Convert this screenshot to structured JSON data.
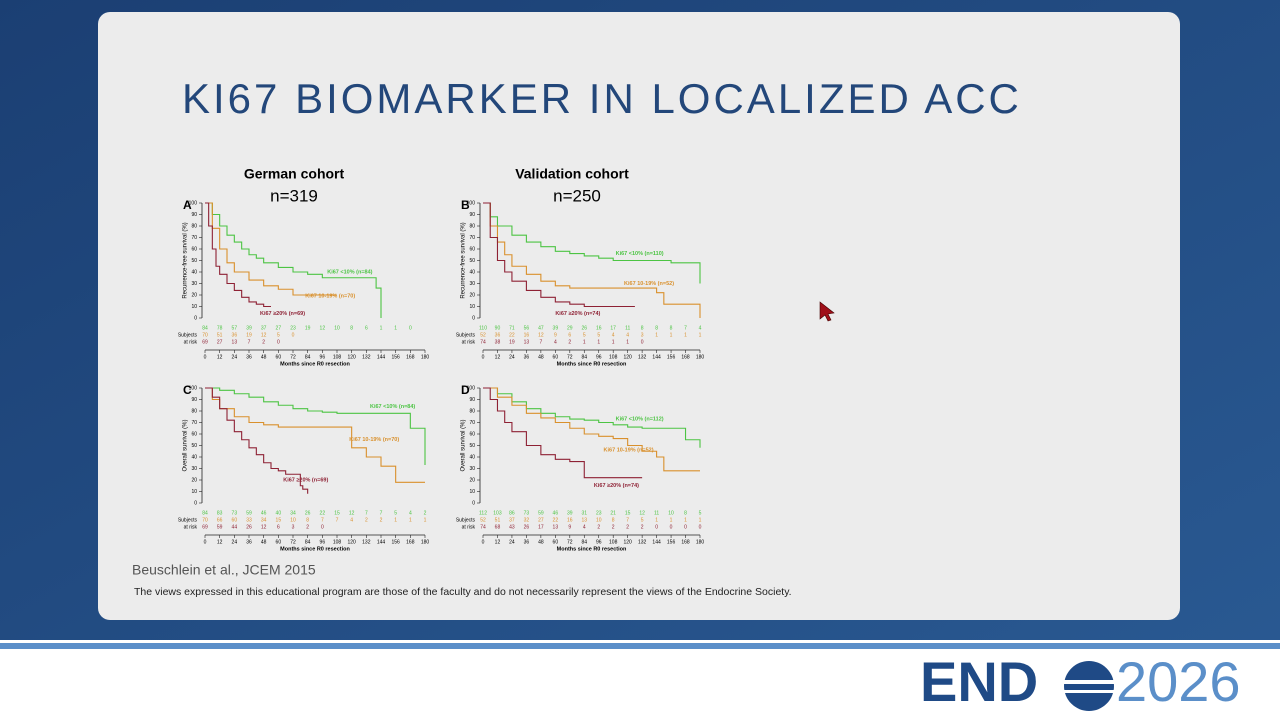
{
  "title": "KI67 BIOMARKER IN LOCALIZED ACC",
  "columns": [
    {
      "heading": "German cohort",
      "n": "n=319"
    },
    {
      "heading": "Validation cohort",
      "n": "n=250"
    }
  ],
  "citation": "Beuschlein et al., JCEM 2015",
  "disclaimer": "The views expressed in this educational program are those of the faculty and do not necessarily represent the views of the Endocrine Society.",
  "logo": {
    "left": "END",
    "right": "2026"
  },
  "chart_data": [
    {
      "type": "line",
      "step": true,
      "panel": "A",
      "ylabel": "Recurrence-free survival (%)",
      "xlabel": "Months since R0 resection",
      "xlim": [
        0,
        180
      ],
      "ylim": [
        0,
        100
      ],
      "xticks": [
        0,
        12,
        24,
        36,
        48,
        60,
        72,
        84,
        96,
        108,
        120,
        132,
        144,
        156,
        168,
        180
      ],
      "yticks": [
        0,
        10,
        20,
        30,
        40,
        50,
        60,
        70,
        80,
        90,
        100
      ],
      "series": [
        {
          "name": "Ki67 <10% (n=84)",
          "color": "#4cc443",
          "x": [
            0,
            6,
            12,
            18,
            24,
            30,
            36,
            42,
            48,
            60,
            72,
            84,
            96,
            108,
            120,
            132,
            140,
            144,
            144
          ],
          "values": [
            100,
            90,
            80,
            72,
            66,
            60,
            55,
            52,
            48,
            44,
            40,
            38,
            35,
            35,
            35,
            35,
            26,
            26,
            0
          ]
        },
        {
          "name": "Ki67 10-19% (n=70)",
          "color": "#d9902c",
          "x": [
            0,
            6,
            12,
            18,
            24,
            36,
            48,
            60,
            72,
            84,
            96,
            108
          ],
          "values": [
            100,
            78,
            60,
            48,
            40,
            33,
            28,
            25,
            20,
            20,
            20,
            20
          ]
        },
        {
          "name": "Ki67 ≥20% (n=69)",
          "color": "#8e2134",
          "x": [
            0,
            3,
            6,
            9,
            12,
            18,
            24,
            30,
            36,
            42,
            48,
            54
          ],
          "values": [
            100,
            80,
            60,
            45,
            38,
            30,
            24,
            18,
            14,
            12,
            10,
            10
          ]
        }
      ],
      "at_risk": {
        "label": [
          "Subjects",
          "at risk"
        ],
        "rows": [
          {
            "color": "#4cc443",
            "values": [
              84,
              78,
              57,
              39,
              37,
              27,
              23,
              19,
              12,
              10,
              8,
              6,
              1,
              1,
              0
            ]
          },
          {
            "color": "#d9902c",
            "values": [
              70,
              51,
              36,
              19,
              12,
              5,
              0
            ]
          },
          {
            "color": "#8e2134",
            "values": [
              69,
              27,
              13,
              7,
              2,
              0
            ]
          }
        ]
      }
    },
    {
      "type": "line",
      "step": true,
      "panel": "B",
      "ylabel": "Recurrence-free survival (%)",
      "xlabel": "Months since R0 resection",
      "xlim": [
        0,
        180
      ],
      "ylim": [
        0,
        100
      ],
      "xticks": [
        0,
        12,
        24,
        36,
        48,
        60,
        72,
        84,
        96,
        108,
        120,
        132,
        144,
        156,
        168,
        180
      ],
      "yticks": [
        0,
        10,
        20,
        30,
        40,
        50,
        60,
        70,
        80,
        90,
        100
      ],
      "series": [
        {
          "name": "Ki67 <10% (n=110)",
          "color": "#4cc443",
          "x": [
            0,
            6,
            12,
            24,
            36,
            48,
            60,
            72,
            84,
            96,
            108,
            120,
            132,
            144,
            156,
            168,
            176,
            180,
            180
          ],
          "values": [
            100,
            88,
            80,
            72,
            66,
            62,
            58,
            56,
            54,
            52,
            50,
            50,
            50,
            50,
            48,
            48,
            48,
            38,
            30
          ]
        },
        {
          "name": "Ki67 10-19% (n=52)",
          "color": "#d9902c",
          "x": [
            0,
            6,
            12,
            18,
            24,
            36,
            48,
            60,
            72,
            96,
            120,
            132,
            144,
            150,
            180,
            180
          ],
          "values": [
            100,
            80,
            66,
            55,
            45,
            38,
            32,
            28,
            26,
            26,
            26,
            26,
            22,
            12,
            12,
            0
          ]
        },
        {
          "name": "Ki67 ≥20% (n=74)",
          "color": "#8e2134",
          "x": [
            0,
            6,
            12,
            18,
            24,
            36,
            48,
            60,
            72,
            84,
            96,
            108,
            120,
            126
          ],
          "values": [
            100,
            70,
            50,
            40,
            32,
            24,
            18,
            14,
            12,
            10,
            10,
            10,
            10,
            10
          ]
        }
      ],
      "at_risk": {
        "label": [
          "Subjects",
          "at risk"
        ],
        "rows": [
          {
            "color": "#4cc443",
            "values": [
              110,
              90,
              71,
              56,
              47,
              39,
              29,
              26,
              16,
              17,
              11,
              8,
              8,
              8,
              7,
              4
            ]
          },
          {
            "color": "#d9902c",
            "values": [
              52,
              36,
              22,
              16,
              12,
              9,
              6,
              5,
              5,
              4,
              4,
              3,
              1,
              1,
              1,
              1
            ]
          },
          {
            "color": "#8e2134",
            "values": [
              74,
              38,
              19,
              13,
              7,
              4,
              2,
              1,
              1,
              1,
              1,
              0
            ]
          }
        ]
      }
    },
    {
      "type": "line",
      "step": true,
      "panel": "C",
      "ylabel": "Overall survival (%)",
      "xlabel": "Months since R0 resection",
      "xlim": [
        0,
        180
      ],
      "ylim": [
        0,
        100
      ],
      "xticks": [
        0,
        12,
        24,
        36,
        48,
        60,
        72,
        84,
        96,
        108,
        120,
        132,
        144,
        156,
        168,
        180
      ],
      "yticks": [
        0,
        10,
        20,
        30,
        40,
        50,
        60,
        70,
        80,
        90,
        100
      ],
      "series": [
        {
          "name": "Ki67 <10% (n=84)",
          "color": "#4cc443",
          "x": [
            0,
            12,
            24,
            36,
            48,
            60,
            72,
            84,
            96,
            108,
            120,
            132,
            144,
            168,
            180,
            180
          ],
          "values": [
            100,
            98,
            95,
            92,
            88,
            85,
            82,
            80,
            79,
            78,
            78,
            78,
            78,
            65,
            65,
            33
          ]
        },
        {
          "name": "Ki67 10-19% (n=70)",
          "color": "#d9902c",
          "x": [
            0,
            6,
            12,
            24,
            36,
            48,
            60,
            84,
            108,
            120,
            132,
            144,
            156,
            180
          ],
          "values": [
            100,
            90,
            82,
            75,
            70,
            68,
            66,
            66,
            66,
            48,
            40,
            32,
            18,
            18
          ]
        },
        {
          "name": "Ki67 ≥20% (n=69)",
          "color": "#8e2134",
          "x": [
            0,
            6,
            12,
            18,
            24,
            30,
            36,
            42,
            48,
            54,
            60,
            66,
            72,
            78,
            80,
            84
          ],
          "values": [
            100,
            92,
            82,
            72,
            62,
            55,
            48,
            42,
            35,
            30,
            28,
            25,
            25,
            15,
            12,
            8
          ]
        }
      ],
      "at_risk": {
        "label": [
          "Subjects",
          "at risk"
        ],
        "rows": [
          {
            "color": "#4cc443",
            "values": [
              84,
              83,
              73,
              59,
              46,
              40,
              34,
              26,
              22,
              15,
              12,
              7,
              7,
              5,
              4,
              2
            ]
          },
          {
            "color": "#d9902c",
            "values": [
              70,
              66,
              60,
              33,
              34,
              15,
              10,
              8,
              7,
              7,
              4,
              2,
              2,
              1,
              1,
              1
            ]
          },
          {
            "color": "#8e2134",
            "values": [
              69,
              59,
              44,
              26,
              12,
              6,
              3,
              2,
              0
            ]
          }
        ]
      }
    },
    {
      "type": "line",
      "step": true,
      "panel": "D",
      "ylabel": "Overall survival (%)",
      "xlabel": "Months since R0 resection",
      "xlim": [
        0,
        180
      ],
      "ylim": [
        0,
        100
      ],
      "xticks": [
        0,
        12,
        24,
        36,
        48,
        60,
        72,
        84,
        96,
        108,
        120,
        132,
        144,
        156,
        168,
        180
      ],
      "yticks": [
        0,
        10,
        20,
        30,
        40,
        50,
        60,
        70,
        80,
        90,
        100
      ],
      "series": [
        {
          "name": "Ki67 <10% (n=112)",
          "color": "#4cc443",
          "x": [
            0,
            12,
            24,
            36,
            48,
            60,
            72,
            84,
            96,
            108,
            120,
            132,
            144,
            168,
            180,
            180
          ],
          "values": [
            100,
            95,
            88,
            82,
            78,
            75,
            73,
            72,
            70,
            68,
            66,
            65,
            65,
            55,
            55,
            48
          ]
        },
        {
          "name": "Ki67 10-19% (n=52)",
          "color": "#d9902c",
          "x": [
            0,
            12,
            24,
            36,
            48,
            60,
            72,
            84,
            96,
            108,
            120,
            132,
            144,
            150,
            180
          ],
          "values": [
            100,
            92,
            85,
            78,
            74,
            70,
            65,
            60,
            58,
            56,
            50,
            45,
            40,
            28,
            28
          ]
        },
        {
          "name": "Ki67 ≥20% (n=74)",
          "color": "#8e2134",
          "x": [
            0,
            6,
            12,
            18,
            24,
            36,
            48,
            60,
            72,
            84,
            96,
            108,
            120,
            132
          ],
          "values": [
            100,
            90,
            80,
            70,
            62,
            50,
            42,
            38,
            36,
            22,
            22,
            22,
            22,
            22
          ]
        }
      ],
      "at_risk": {
        "label": [
          "Subjects",
          "at risk"
        ],
        "rows": [
          {
            "color": "#4cc443",
            "values": [
              112,
              103,
              86,
              73,
              59,
              46,
              39,
              31,
              23,
              21,
              15,
              12,
              11,
              10,
              8,
              5
            ]
          },
          {
            "color": "#d9902c",
            "values": [
              52,
              51,
              37,
              32,
              27,
              22,
              16,
              13,
              10,
              8,
              7,
              5,
              1,
              1,
              1,
              1
            ]
          },
          {
            "color": "#8e2134",
            "values": [
              74,
              68,
              43,
              26,
              17,
              13,
              9,
              4,
              2,
              2,
              2,
              2,
              0,
              0,
              0,
              0
            ]
          }
        ]
      }
    }
  ]
}
